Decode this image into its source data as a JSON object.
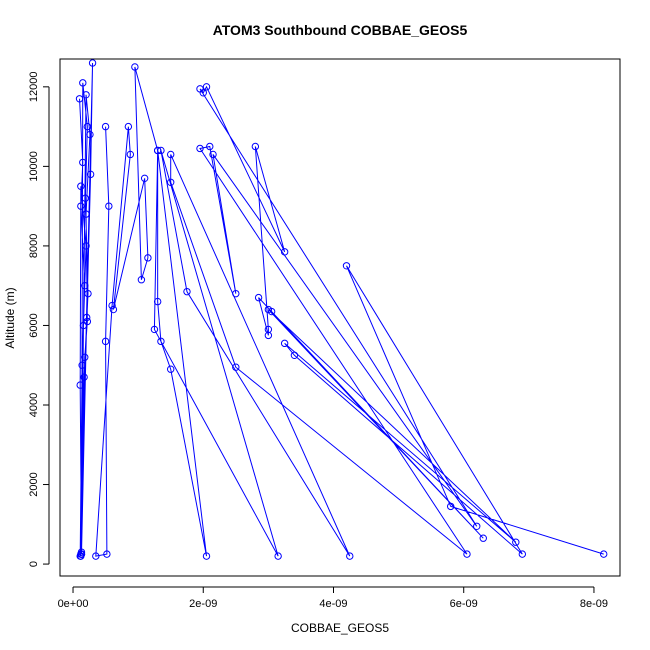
{
  "chart_data": {
    "type": "line",
    "title": "ATOM3 Southbound COBBAE_GEOS5",
    "xlabel": "COBBAE_GEOS5",
    "ylabel": "Altitude (m)",
    "xlim": [
      -2e-10,
      8.4e-09
    ],
    "ylim": [
      -300,
      12700
    ],
    "x_ticks": [
      0,
      2e-09,
      4e-09,
      6e-09,
      8e-09
    ],
    "x_tick_labels": [
      "0e+00",
      "2e-09",
      "4e-09",
      "6e-09",
      "8e-09"
    ],
    "y_ticks": [
      0,
      2000,
      4000,
      6000,
      8000,
      10000,
      12000
    ],
    "y_tick_labels": [
      "0",
      "2000",
      "4000",
      "6000",
      "8000",
      "10000",
      "12000"
    ],
    "grid": false,
    "legend": "none",
    "line_color": "#0000ff",
    "marker": "open-circle",
    "series": [
      {
        "points": [
          [
            1e-10,
            11700
          ],
          [
            1.5e-10,
            10100
          ],
          [
            1.2e-10,
            9000
          ],
          [
            1.8e-10,
            7000
          ],
          [
            1.4e-10,
            5000
          ],
          [
            1.1e-10,
            200
          ],
          [
            1.3e-10,
            300
          ],
          [
            1.6e-10,
            6000
          ],
          [
            2e-10,
            8000
          ],
          [
            1.2e-10,
            9500
          ],
          [
            1.1e-10,
            4500
          ],
          [
            1.3e-10,
            250
          ],
          [
            1.5e-10,
            12100
          ],
          [
            2.2e-10,
            11000
          ],
          [
            1.9e-10,
            9200
          ],
          [
            2.3e-10,
            6800
          ],
          [
            1.7e-10,
            4700
          ],
          [
            1.2e-10,
            200
          ],
          [
            2e-10,
            11800
          ],
          [
            2.6e-10,
            10800
          ],
          [
            2e-10,
            8800
          ],
          [
            2.2e-10,
            6100
          ],
          [
            1.8e-10,
            5200
          ],
          [
            1.2e-10,
            250
          ],
          [
            3e-10,
            12600
          ],
          [
            2.7e-10,
            9800
          ],
          [
            2.1e-10,
            6200
          ],
          [
            1.3e-10,
            250
          ]
        ]
      },
      {
        "points": [
          [
            5e-10,
            11000
          ],
          [
            5.5e-10,
            9000
          ],
          [
            5e-10,
            5600
          ],
          [
            5.2e-10,
            250
          ],
          [
            3.5e-10,
            200
          ],
          [
            6e-10,
            6500
          ],
          [
            8.5e-10,
            11000
          ],
          [
            8.8e-10,
            10300
          ],
          [
            6.2e-10,
            6400
          ],
          [
            1.1e-09,
            9700
          ],
          [
            1.15e-09,
            7700
          ],
          [
            1.05e-09,
            7150
          ],
          [
            9.5e-10,
            12500
          ],
          [
            1.3e-09,
            10400
          ],
          [
            1.3e-09,
            6600
          ],
          [
            1.35e-09,
            5600
          ],
          [
            1.5e-09,
            4900
          ],
          [
            2.05e-09,
            200
          ],
          [
            1.3e-09,
            10400
          ],
          [
            1.25e-09,
            5900
          ],
          [
            3.15e-09,
            200
          ],
          [
            1.35e-09,
            10400
          ],
          [
            1.75e-09,
            6850
          ],
          [
            4.25e-09,
            200
          ],
          [
            1.5e-09,
            10300
          ],
          [
            1.5e-09,
            9600
          ],
          [
            2.5e-09,
            4950
          ],
          [
            6.05e-09,
            250
          ],
          [
            1.95e-09,
            10450
          ],
          [
            2.1e-09,
            10500
          ],
          [
            2.5e-09,
            6800
          ],
          [
            2.15e-09,
            10300
          ],
          [
            6.2e-09,
            950
          ],
          [
            1.95e-09,
            11950
          ],
          [
            2e-09,
            11850
          ],
          [
            2.05e-09,
            12000
          ],
          [
            3.25e-09,
            7850
          ],
          [
            2.8e-09,
            10500
          ],
          [
            3e-09,
            5900
          ],
          [
            3e-09,
            5750
          ],
          [
            2.85e-09,
            6700
          ],
          [
            3.05e-09,
            6350
          ],
          [
            6.3e-09,
            650
          ],
          [
            3e-09,
            6400
          ],
          [
            6.8e-09,
            550
          ],
          [
            3.25e-09,
            5550
          ],
          [
            3.4e-09,
            5250
          ],
          [
            6.9e-09,
            250
          ],
          [
            4.2e-09,
            7500
          ],
          [
            5.8e-09,
            1450
          ],
          [
            8.15e-09,
            250
          ]
        ]
      }
    ]
  }
}
